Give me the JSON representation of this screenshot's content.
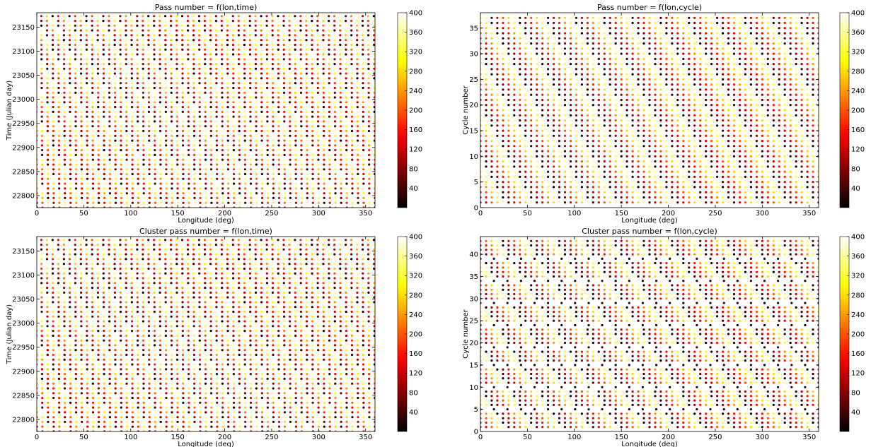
{
  "chart_data": [
    {
      "type": "scatter",
      "title": "Pass number = f(lon,time)",
      "xlabel": "Longitude (deg)",
      "ylabel": "Time (Julian day)",
      "xlim": [
        0,
        360
      ],
      "ylim": [
        22775,
        23180
      ],
      "xticks": [
        0,
        50,
        100,
        150,
        200,
        250,
        300,
        350
      ],
      "yticks": [
        22800,
        22850,
        22900,
        22950,
        23000,
        23050,
        23100,
        23150
      ],
      "colorbar": {
        "min": 0,
        "max": 400,
        "ticks": [
          40,
          80,
          120,
          160,
          200,
          240,
          280,
          320,
          360,
          400
        ],
        "colormap": "hot"
      },
      "grid": false,
      "series": [
        {
          "kind": "sheared-dots",
          "x_start": 0,
          "x_end": 360,
          "x_step": 6.0,
          "y_start": 22775,
          "y_end": 23180,
          "y_step": 9.95,
          "shear_deg_per_day": 0.6,
          "passes_per_cycle": 400
        }
      ]
    },
    {
      "type": "scatter",
      "title": "Pass number = f(lon,cycle)",
      "xlabel": "Longitude (deg)",
      "ylabel": "Cycle number",
      "xlim": [
        0,
        360
      ],
      "ylim": [
        0,
        38
      ],
      "xticks": [
        0,
        50,
        100,
        150,
        200,
        250,
        300,
        350
      ],
      "yticks": [
        0,
        5,
        10,
        15,
        20,
        25,
        30,
        35
      ],
      "colorbar": {
        "min": 0,
        "max": 400,
        "ticks": [
          40,
          80,
          120,
          160,
          200,
          240,
          280,
          320,
          360,
          400
        ],
        "colormap": "hot"
      },
      "grid": false,
      "series": [
        {
          "kind": "cycle-rows",
          "x_start": 0,
          "x_end": 360,
          "x_step": 6.0,
          "rows_from": 1,
          "rows_to": 37,
          "row_step": 1,
          "gaps": []
        }
      ]
    },
    {
      "type": "scatter",
      "title": "Cluster pass number = f(lon,time)",
      "xlabel": "Longitude (deg)",
      "ylabel": "Time (Julian day)",
      "xlim": [
        0,
        360
      ],
      "ylim": [
        22775,
        23180
      ],
      "xticks": [
        0,
        50,
        100,
        150,
        200,
        250,
        300,
        350
      ],
      "yticks": [
        22800,
        22850,
        22900,
        22950,
        23000,
        23050,
        23100,
        23150
      ],
      "colorbar": {
        "min": 0,
        "max": 400,
        "ticks": [
          40,
          80,
          120,
          160,
          200,
          240,
          280,
          320,
          360,
          400
        ],
        "colormap": "hot"
      },
      "grid": false,
      "series": [
        {
          "kind": "sheared-dots",
          "x_start": 0,
          "x_end": 360,
          "x_step": 6.0,
          "y_start": 22775,
          "y_end": 23180,
          "y_step": 9.95,
          "shear_deg_per_day": 0.6,
          "passes_per_cycle": 400
        }
      ]
    },
    {
      "type": "scatter",
      "title": "Cluster pass number = f(lon,cycle)",
      "xlabel": "Longitude (deg)",
      "ylabel": "Cycle number",
      "xlim": [
        0,
        360
      ],
      "ylim": [
        0,
        44
      ],
      "xticks": [
        0,
        50,
        100,
        150,
        200,
        250,
        300,
        350
      ],
      "yticks": [
        0,
        5,
        10,
        15,
        20,
        25,
        30,
        35,
        40
      ],
      "colorbar": {
        "min": 0,
        "max": 400,
        "ticks": [
          40,
          80,
          120,
          160,
          200,
          240,
          280,
          320,
          360,
          400
        ],
        "colormap": "hot"
      },
      "grid": false,
      "series": [
        {
          "kind": "cycle-rows",
          "x_start": 0,
          "x_end": 360,
          "x_step": 6.0,
          "rows_from": 1,
          "rows_to": 43,
          "row_step": 1,
          "gaps": [
            5,
            10,
            15,
            19,
            24,
            29,
            34,
            39
          ]
        }
      ]
    }
  ]
}
